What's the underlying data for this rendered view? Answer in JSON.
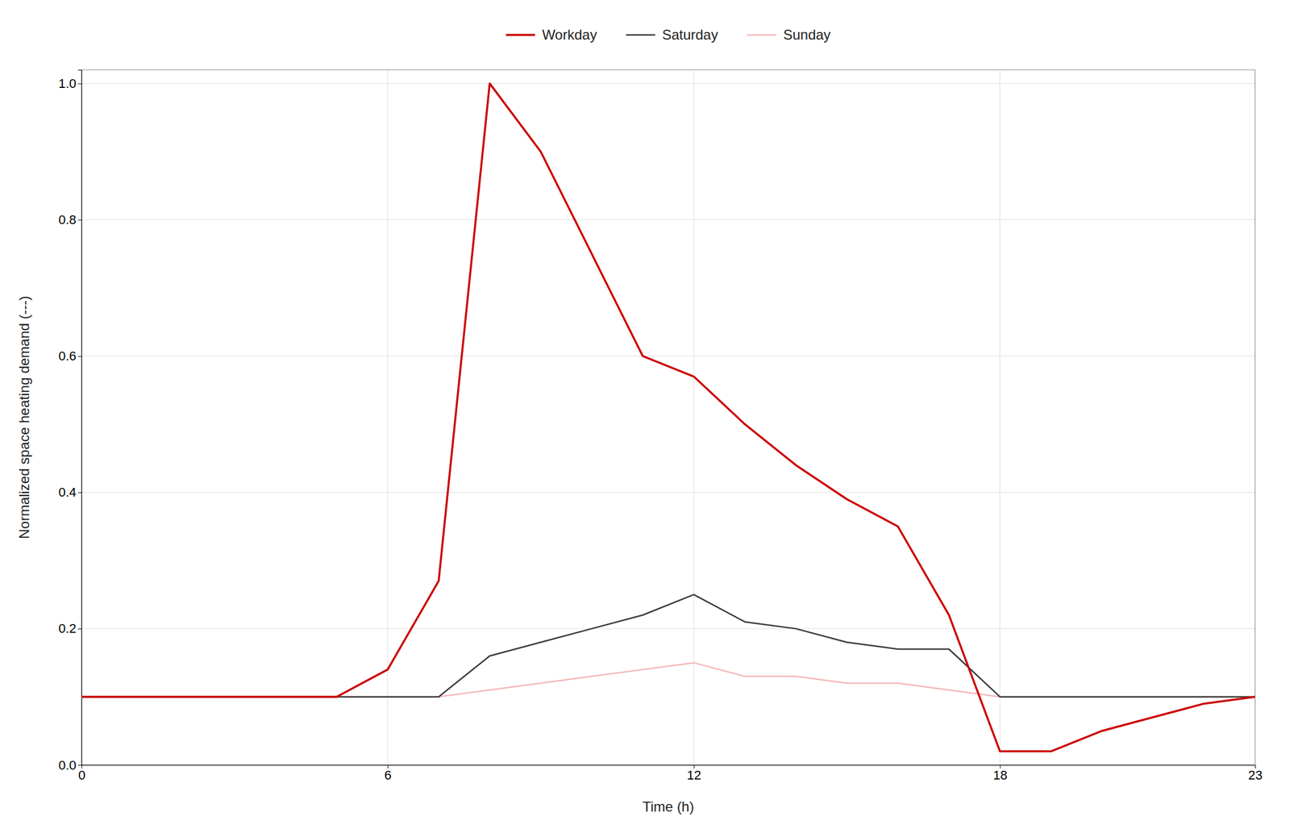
{
  "chart_data": {
    "type": "line",
    "xlabel": "Time (h)",
    "ylabel": "Normalized space heating demand (---)",
    "x": [
      0,
      1,
      2,
      3,
      4,
      5,
      6,
      7,
      8,
      9,
      10,
      11,
      12,
      13,
      14,
      15,
      16,
      17,
      18,
      19,
      20,
      21,
      22,
      23
    ],
    "series": [
      {
        "name": "Workday",
        "color": "#cc0000",
        "values": [
          0.1,
          0.1,
          0.1,
          0.1,
          0.1,
          0.1,
          0.14,
          0.27,
          1.0,
          0.9,
          0.75,
          0.6,
          0.57,
          0.5,
          0.44,
          0.39,
          0.35,
          0.22,
          0.02,
          0.02,
          0.05,
          0.07,
          0.09,
          0.1
        ]
      },
      {
        "name": "Saturday",
        "color": "#3a3a3a",
        "values": [
          0.1,
          0.1,
          0.1,
          0.1,
          0.1,
          0.1,
          0.1,
          0.1,
          0.16,
          0.18,
          0.2,
          0.22,
          0.25,
          0.21,
          0.2,
          0.18,
          0.17,
          0.17,
          0.1,
          0.1,
          0.1,
          0.1,
          0.1,
          0.1
        ]
      },
      {
        "name": "Sunday",
        "color": "#f5b8b8",
        "values": [
          0.1,
          0.1,
          0.1,
          0.1,
          0.1,
          0.1,
          0.1,
          0.1,
          0.11,
          0.12,
          0.13,
          0.14,
          0.15,
          0.13,
          0.13,
          0.12,
          0.12,
          0.11,
          0.1,
          0.1,
          0.1,
          0.1,
          0.1,
          0.1
        ]
      }
    ],
    "xlim": [
      0,
      23
    ],
    "ylim": [
      0.0,
      1.02
    ],
    "xticks": [
      0,
      6,
      12,
      18,
      23
    ],
    "yticks": [
      {
        "value": 0.0,
        "label": "0.0"
      },
      0.2,
      0.4,
      0.6,
      0.8,
      {
        "value": 1.0,
        "label": "1.0"
      }
    ],
    "grid": true,
    "legend": "top"
  }
}
